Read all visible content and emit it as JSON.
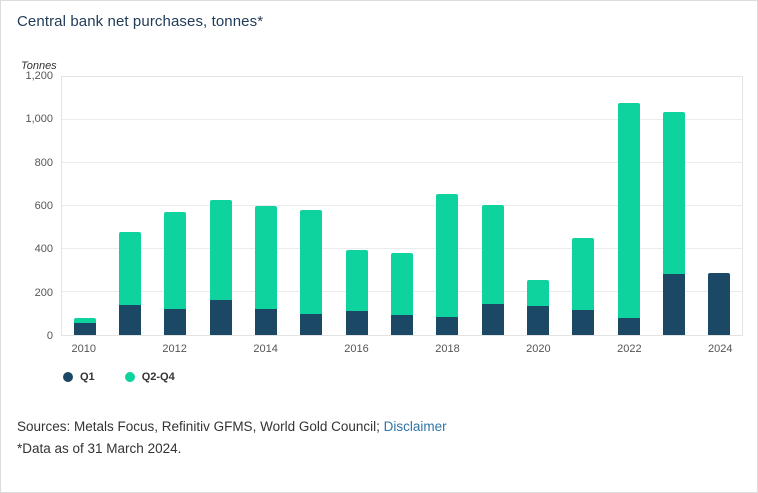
{
  "chart_data": {
    "type": "bar",
    "stacked": true,
    "title": "Central bank net purchases, tonnes*",
    "ylabel": "Tonnes",
    "categories": [
      2010,
      2011,
      2012,
      2013,
      2014,
      2015,
      2016,
      2017,
      2018,
      2019,
      2020,
      2021,
      2022,
      2023,
      2024
    ],
    "series": [
      {
        "name": "Q1",
        "color": "#1b4965",
        "values": [
          55,
          140,
          120,
          165,
          120,
          100,
          110,
          95,
          85,
          145,
          135,
          115,
          80,
          285,
          290
        ]
      },
      {
        "name": "Q2-Q4",
        "color": "#0fd39f",
        "values": [
          25,
          340,
          450,
          465,
          480,
          480,
          285,
          285,
          570,
          460,
          120,
          335,
          1000,
          750,
          0
        ]
      }
    ],
    "ylim": [
      0,
      1200
    ],
    "yticks": [
      0,
      200,
      400,
      600,
      800,
      1000,
      1200
    ],
    "ytick_labels": [
      "0",
      "200",
      "400",
      "600",
      "800",
      "1,000",
      "1,200"
    ],
    "xtick_labels": [
      "2010",
      "2012",
      "2014",
      "2016",
      "2018",
      "2020",
      "2022",
      "2024"
    ],
    "grid": true,
    "legend_position": "bottom-left"
  },
  "footer": {
    "sources_prefix": "Sources: Metals Focus, Refinitiv GFMS, World Gold Council; ",
    "disclaimer_label": "Disclaimer",
    "note": "*Data as of 31 March 2024."
  }
}
